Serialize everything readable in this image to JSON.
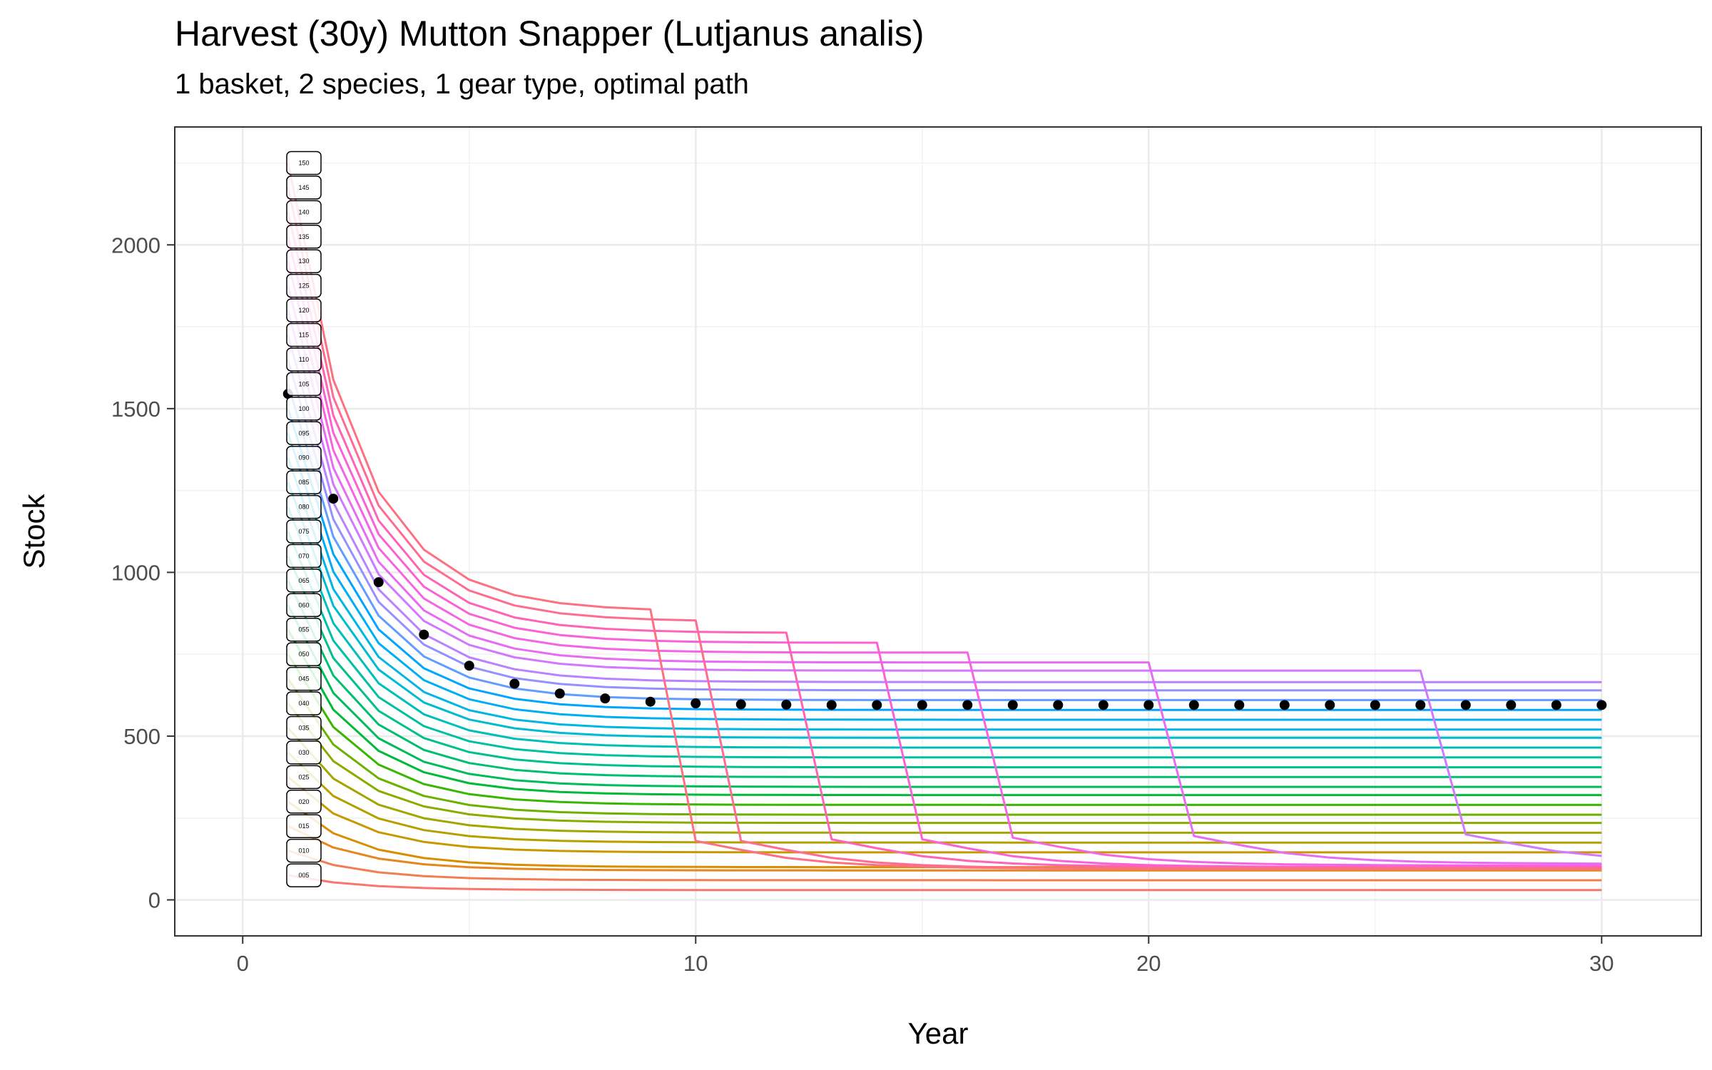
{
  "chart_data": {
    "type": "line",
    "title": "Harvest (30y) Mutton Snapper (Lutjanus analis)",
    "subtitle": "1 basket, 2 species, 1 gear type, optimal path",
    "xlabel": "Year",
    "ylabel": "Stock",
    "xlim": [
      -1.5,
      32.2
    ],
    "ylim": [
      -110,
      2360
    ],
    "x_ticks": [
      0,
      10,
      20,
      30
    ],
    "y_ticks": [
      0,
      500,
      1000,
      1500,
      2000
    ],
    "grid": true,
    "legend": "none",
    "series_start_year": 1,
    "series_end_year": 30,
    "series_label_year": 1.35,
    "series": [
      {
        "label": "005",
        "color": "#F8766D",
        "start": 75,
        "end": 30,
        "collapse_year": null
      },
      {
        "label": "010",
        "color": "#F27D52",
        "start": 150,
        "end": 60,
        "collapse_year": null
      },
      {
        "label": "015",
        "color": "#E7851E",
        "start": 225,
        "end": 90,
        "collapse_year": null
      },
      {
        "label": "020",
        "color": "#D98E00",
        "start": 300,
        "end": 100,
        "collapse_year": null
      },
      {
        "label": "025",
        "color": "#C99800",
        "start": 375,
        "end": 145,
        "collapse_year": null
      },
      {
        "label": "030",
        "color": "#B79F00",
        "start": 450,
        "end": 175,
        "collapse_year": null
      },
      {
        "label": "035",
        "color": "#A3A500",
        "start": 525,
        "end": 205,
        "collapse_year": null
      },
      {
        "label": "040",
        "color": "#8AAB00",
        "start": 600,
        "end": 235,
        "collapse_year": null
      },
      {
        "label": "045",
        "color": "#6BB100",
        "start": 675,
        "end": 260,
        "collapse_year": null
      },
      {
        "label": "050",
        "color": "#39B600",
        "start": 750,
        "end": 290,
        "collapse_year": null
      },
      {
        "label": "055",
        "color": "#00BA38",
        "start": 825,
        "end": 320,
        "collapse_year": null
      },
      {
        "label": "060",
        "color": "#00BC59",
        "start": 900,
        "end": 345,
        "collapse_year": null
      },
      {
        "label": "065",
        "color": "#00BE72",
        "start": 975,
        "end": 375,
        "collapse_year": null
      },
      {
        "label": "070",
        "color": "#00C08B",
        "start": 1050,
        "end": 405,
        "collapse_year": null
      },
      {
        "label": "075",
        "color": "#00C0A3",
        "start": 1125,
        "end": 435,
        "collapse_year": null
      },
      {
        "label": "080",
        "color": "#00BFBA",
        "start": 1200,
        "end": 465,
        "collapse_year": null
      },
      {
        "label": "085",
        "color": "#00BCD0",
        "start": 1275,
        "end": 495,
        "collapse_year": null
      },
      {
        "label": "090",
        "color": "#00B6E3",
        "start": 1350,
        "end": 520,
        "collapse_year": null
      },
      {
        "label": "095",
        "color": "#00AEF4",
        "start": 1425,
        "end": 550,
        "collapse_year": null
      },
      {
        "label": "100",
        "color": "#00A5FF",
        "start": 1500,
        "end": 580,
        "collapse_year": null
      },
      {
        "label": "105",
        "color": "#619CFF",
        "start": 1575,
        "end": 610,
        "collapse_year": null
      },
      {
        "label": "110",
        "color": "#9590FF",
        "start": 1650,
        "end": 640,
        "collapse_year": null
      },
      {
        "label": "115",
        "color": "#B983FF",
        "start": 1725,
        "end": 665,
        "collapse_year": null
      },
      {
        "label": "120",
        "color": "#D078FF",
        "start": 1800,
        "end": 700,
        "collapse_year": 26,
        "tail_end": 115
      },
      {
        "label": "125",
        "color": "#E76BF3",
        "start": 1875,
        "end": 725,
        "collapse_year": 20,
        "tail_end": 110
      },
      {
        "label": "130",
        "color": "#F564E3",
        "start": 1950,
        "end": 755,
        "collapse_year": 16,
        "tail_end": 105
      },
      {
        "label": "135",
        "color": "#FB61D7",
        "start": 2025,
        "end": 785,
        "collapse_year": 14,
        "tail_end": 100
      },
      {
        "label": "140",
        "color": "#FF63B6",
        "start": 2100,
        "end": 815,
        "collapse_year": 12,
        "tail_end": 100
      },
      {
        "label": "145",
        "color": "#FF6C91",
        "start": 2175,
        "end": 850,
        "collapse_year": 10,
        "tail_end": 95
      },
      {
        "label": "150",
        "color": "#FC717F",
        "start": 2250,
        "end": 880,
        "collapse_year": 9,
        "tail_end": 95
      }
    ],
    "optimal_path": {
      "x": [
        1,
        2,
        3,
        4,
        5,
        6,
        7,
        8,
        9,
        10,
        11,
        12,
        13,
        14,
        15,
        16,
        17,
        18,
        19,
        20,
        21,
        22,
        23,
        24,
        25,
        26,
        27,
        28,
        29,
        30
      ],
      "y": [
        1545,
        1225,
        970,
        810,
        715,
        660,
        630,
        615,
        605,
        600,
        597,
        596,
        595,
        595,
        595,
        595,
        595,
        595,
        595,
        595,
        595,
        595,
        595,
        595,
        595,
        595,
        595,
        595,
        595,
        595
      ]
    }
  }
}
